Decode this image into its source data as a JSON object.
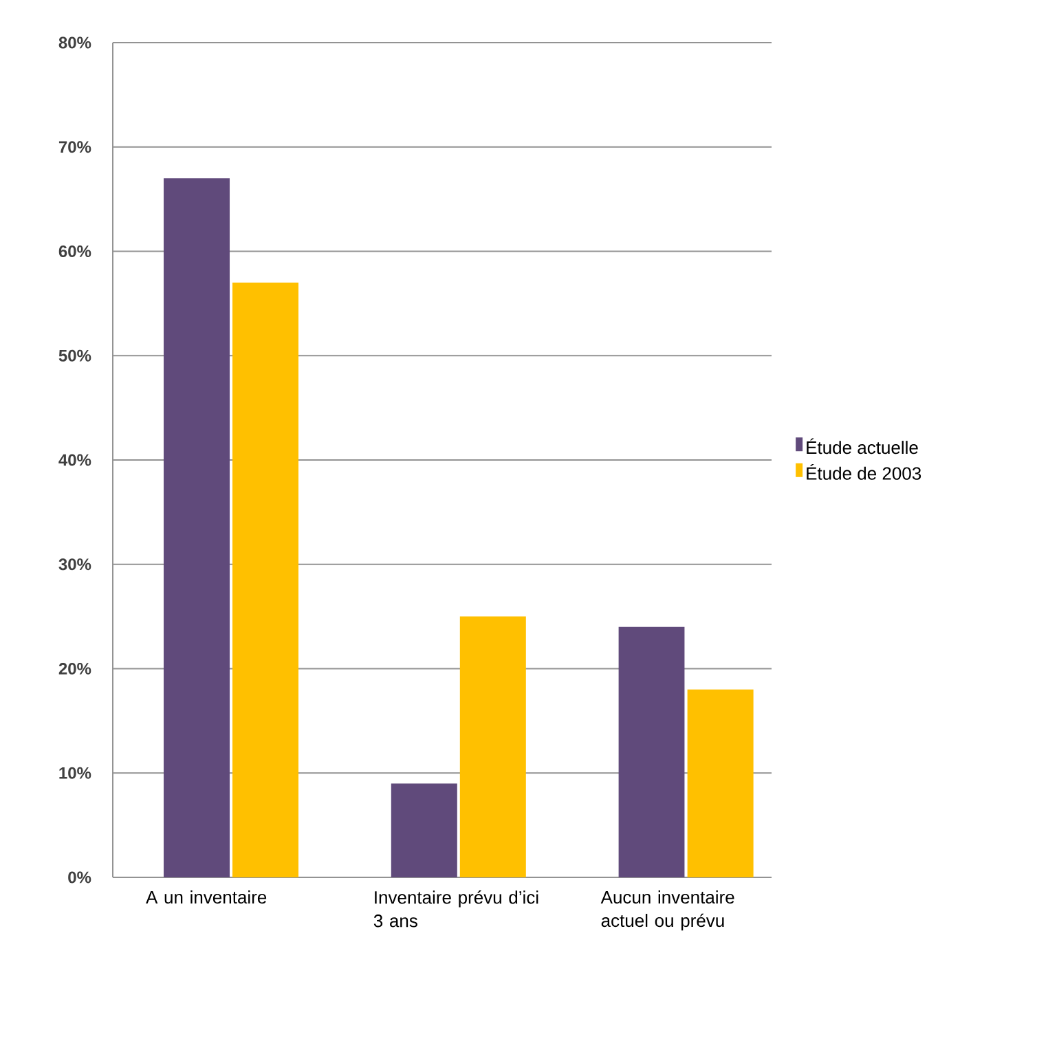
{
  "chart_data": {
    "type": "bar",
    "categories": [
      "A un inventaire",
      "Inventaire prévu d’ici 3 ans",
      "Aucun inventaire actuel ou prévu"
    ],
    "series": [
      {
        "name": "Étude actuelle",
        "color": "#604a7b",
        "values": [
          67,
          9,
          24
        ]
      },
      {
        "name": "Étude de 2003",
        "color": "#ffc000",
        "values": [
          57,
          25,
          18
        ]
      }
    ],
    "ylim": [
      0,
      80
    ],
    "yticks": [
      {
        "value": 0,
        "label": "0%"
      },
      {
        "value": 10,
        "label": "10%"
      },
      {
        "value": 20,
        "label": "20%"
      },
      {
        "value": 30,
        "label": "30%"
      },
      {
        "value": 40,
        "label": "40%"
      },
      {
        "value": 50,
        "label": "50%"
      },
      {
        "value": 60,
        "label": "60%"
      },
      {
        "value": 70,
        "label": "70%"
      },
      {
        "value": 80,
        "label": "80%"
      }
    ],
    "grid": "y",
    "legend": "right"
  }
}
